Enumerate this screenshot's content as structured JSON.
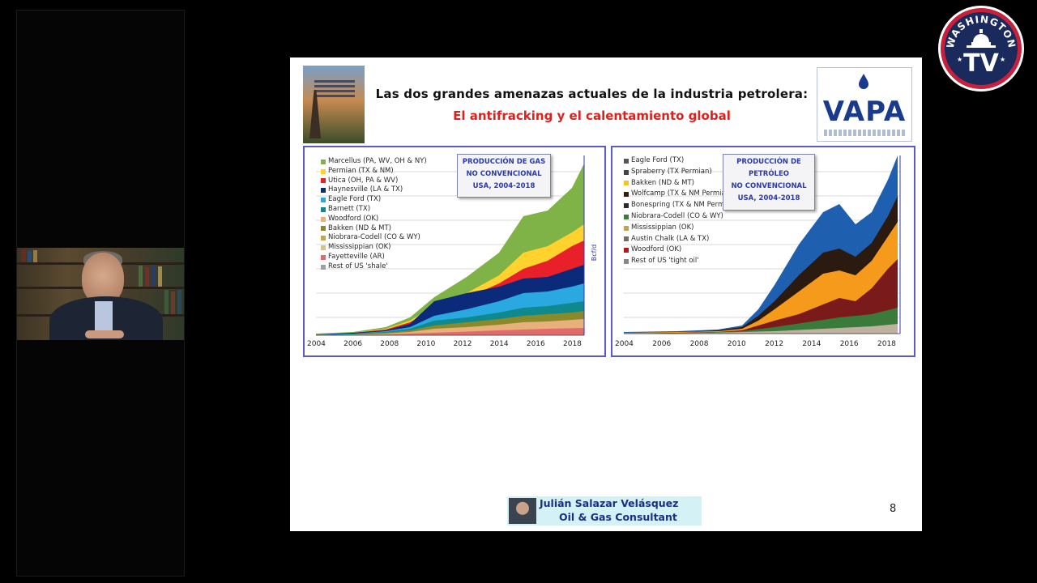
{
  "slide": {
    "title_line1": "Las dos grandes amenazas actuales de la industria petrolera:",
    "title_line2": "El antifracking y el calentamiento global",
    "logo_text": "VAPA",
    "page_number": "8",
    "footer_name": "Julián Salazar Velásquez",
    "footer_title": "Oil & Gas Consultant"
  },
  "gas_chart": {
    "box_text": [
      "PRODUCCIÓN DE GAS",
      "NO CONVENCIONAL",
      "USA, 2004-2018"
    ],
    "legend": [
      {
        "label": "Marcellus (PA, WV, OH & NY)",
        "color": "#7fb247"
      },
      {
        "label": "Permian (TX & NM)",
        "color": "#ffd22e"
      },
      {
        "label": "Utica (OH, PA & WV)",
        "color": "#e8202a"
      },
      {
        "label": "Haynesville (LA & TX)",
        "color": "#0c2a7a"
      },
      {
        "label": "Eagle Ford (TX)",
        "color": "#2aa8e0"
      },
      {
        "label": "Barnett (TX)",
        "color": "#0e8a8e"
      },
      {
        "label": "Woodford (OK)",
        "color": "#e8b07a"
      },
      {
        "label": "Bakken (ND & MT)",
        "color": "#8a8a2a"
      },
      {
        "label": "Niobrara-Codell (CO & WY)",
        "color": "#c9a34a"
      },
      {
        "label": "Mississippian (OK)",
        "color": "#d7c38a"
      },
      {
        "label": "Fayetteville (AR)",
        "color": "#e36a6a"
      },
      {
        "label": "Rest of US 'shale'",
        "color": "#a0a0a0"
      }
    ],
    "x_ticks": [
      "2004",
      "2006",
      "2008",
      "2010",
      "2012",
      "2014",
      "2016",
      "2018"
    ]
  },
  "oil_chart": {
    "box_text": [
      "PRODUCCIÓN DE",
      "PETRÓLEO",
      "NO CONVENCIONAL",
      "USA, 2004-2018"
    ],
    "legend": [
      {
        "label": "Eagle Ford (TX)",
        "color": "#555555"
      },
      {
        "label": "Spraberry (TX Permian)",
        "color": "#444444"
      },
      {
        "label": "Bakken (ND & MT)",
        "color": "#f5c518"
      },
      {
        "label": "Wolfcamp (TX & NM Permian)",
        "color": "#3a1a0a"
      },
      {
        "label": "Bonespring (TX & NM Permian)",
        "color": "#2a2a2a"
      },
      {
        "label": "Niobrara-Codell (CO & WY)",
        "color": "#3a7a3a"
      },
      {
        "label": "Mississippian (OK)",
        "color": "#c9a34a"
      },
      {
        "label": "Austin Chalk (LA & TX)",
        "color": "#7a6a5a"
      },
      {
        "label": "Woodford (OK)",
        "color": "#b01a1a"
      },
      {
        "label": "Rest of US 'tight oil'",
        "color": "#888888"
      }
    ],
    "x_ticks": [
      "2004",
      "2006",
      "2008",
      "2010",
      "2012",
      "2014",
      "2016",
      "2018"
    ]
  },
  "colors": {
    "panel_border": "#5a5acb",
    "title_red": "#e0201c",
    "footer_bg": "#d4f1f6"
  },
  "channel_logo": {
    "top_text": "WASHINGTON",
    "main_text": "TV"
  }
}
